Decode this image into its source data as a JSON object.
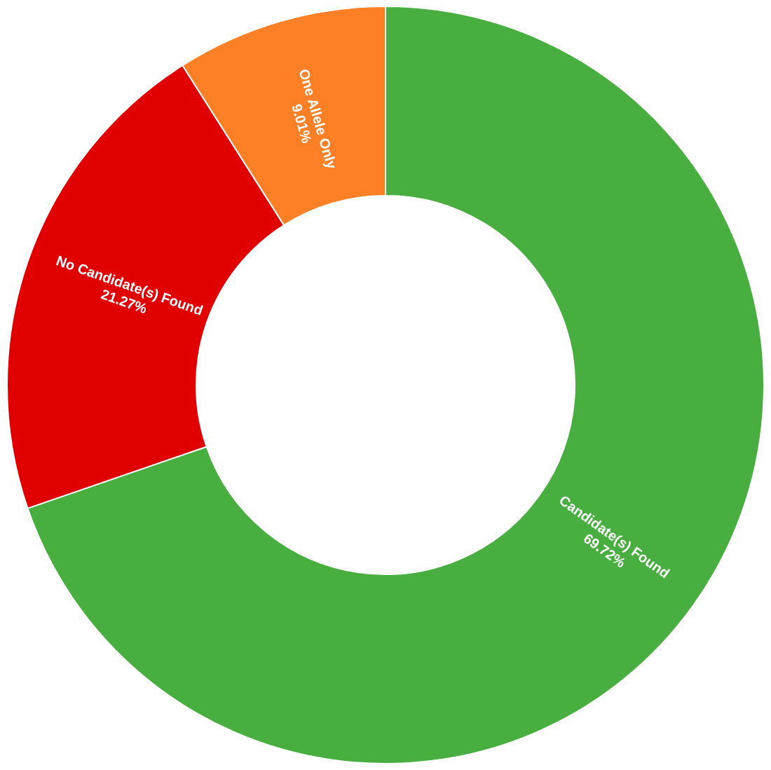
{
  "chart_data": {
    "type": "donut",
    "categories": [
      "Candidate(s) Found",
      "No Candidate(s) Found",
      "One Allele Only"
    ],
    "values": [
      69.72,
      21.27,
      9.01
    ],
    "colors": [
      "#48ae3f",
      "#e00000",
      "#fd7f26"
    ],
    "value_labels": [
      "69.72%",
      "21.27%",
      "9.01%"
    ],
    "legend": false
  }
}
